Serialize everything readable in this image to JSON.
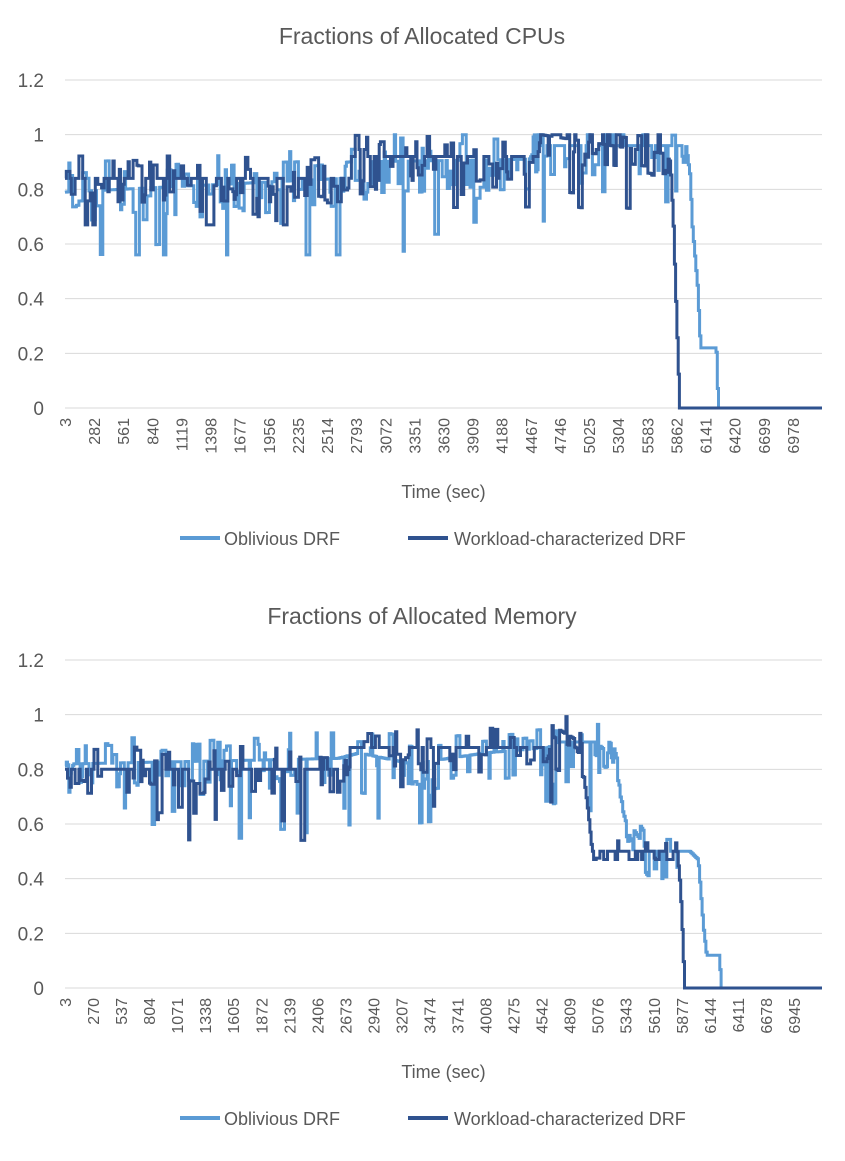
{
  "chart_data": [
    {
      "type": "line",
      "title": "Fractions of Allocated CPUs",
      "xlabel": "Time (sec)",
      "ylabel": "",
      "ylim": [
        0,
        1.2
      ],
      "yticks": [
        "0",
        "0.2",
        "0.4",
        "0.6",
        "0.8",
        "1",
        "1.2"
      ],
      "xlim": [
        3,
        7257
      ],
      "xticks": [
        "3",
        "282",
        "561",
        "840",
        "1119",
        "1398",
        "1677",
        "1956",
        "2235",
        "2514",
        "2793",
        "3072",
        "3351",
        "3630",
        "3909",
        "4188",
        "4467",
        "4746",
        "5025",
        "5304",
        "5583",
        "5862",
        "6141",
        "6420",
        "6699",
        "6978"
      ],
      "grid": "horizontal",
      "legend": "bottom",
      "series": [
        {
          "name": "Oblivious DRF",
          "color": "#5B9BD5",
          "base": [
            [
              3,
              0.79
            ],
            [
              2650,
              0.84
            ],
            [
              2700,
              0.9
            ],
            [
              4450,
              0.91
            ],
            [
              4530,
              0.96
            ],
            [
              5950,
              0.96
            ],
            [
              5990,
              0.85
            ],
            [
              6010,
              0.67
            ],
            [
              6060,
              0.45
            ],
            [
              6090,
              0.22
            ],
            [
              6240,
              0.22
            ],
            [
              6260,
              0
            ],
            [
              7257,
              0
            ]
          ],
          "amp": 0.09,
          "floor": 0.56,
          "noise_end": 5950
        },
        {
          "name": "Workload-characterized DRF",
          "color": "#2F528F",
          "base": [
            [
              3,
              0.84
            ],
            [
              2700,
              0.84
            ],
            [
              2720,
              0.92
            ],
            [
              4530,
              0.92
            ],
            [
              4560,
              1.0
            ],
            [
              5750,
              0.93
            ],
            [
              5800,
              0.9
            ],
            [
              5830,
              0.67
            ],
            [
              5850,
              0.44
            ],
            [
              5870,
              0.22
            ],
            [
              5890,
              0
            ],
            [
              7257,
              0
            ]
          ],
          "amp": 0.07,
          "floor": 0.67,
          "noise_end": 5800
        }
      ]
    },
    {
      "type": "line",
      "title": "Fractions of Allocated Memory",
      "xlabel": "Time (sec)",
      "ylabel": "",
      "ylim": [
        0,
        1.2
      ],
      "yticks": [
        "0",
        "0.2",
        "0.4",
        "0.6",
        "0.8",
        "1",
        "1.2"
      ],
      "xlim": [
        3,
        7212
      ],
      "xticks": [
        "3",
        "270",
        "537",
        "804",
        "1071",
        "1338",
        "1605",
        "1872",
        "2139",
        "2406",
        "2673",
        "2940",
        "3207",
        "3474",
        "3741",
        "4008",
        "4275",
        "4542",
        "4809",
        "5076",
        "5343",
        "5610",
        "5877",
        "6144",
        "6411",
        "6678",
        "6945"
      ],
      "grid": "horizontal",
      "legend": "bottom",
      "series": [
        {
          "name": "Oblivious DRF",
          "color": "#5B9BD5",
          "base": [
            [
              3,
              0.73
            ],
            [
              80,
              0.82
            ],
            [
              2600,
              0.84
            ],
            [
              2800,
              0.86
            ],
            [
              3300,
              0.82
            ],
            [
              4000,
              0.86
            ],
            [
              4600,
              0.88
            ],
            [
              4700,
              0.9
            ],
            [
              5050,
              0.9
            ],
            [
              5200,
              0.85
            ],
            [
              5380,
              0.6
            ],
            [
              5550,
              0.5
            ],
            [
              5950,
              0.5
            ],
            [
              6030,
              0.47
            ],
            [
              6080,
              0.22
            ],
            [
              6110,
              0.12
            ],
            [
              6230,
              0.12
            ],
            [
              6250,
              0
            ],
            [
              7212,
              0
            ]
          ],
          "amp": 0.08,
          "floor": 0.35,
          "noise_end": 5950
        },
        {
          "name": "Workload-characterized DRF",
          "color": "#2F528F",
          "base": [
            [
              3,
              0.8
            ],
            [
              2650,
              0.8
            ],
            [
              2700,
              0.88
            ],
            [
              4600,
              0.88
            ],
            [
              4640,
              0.96
            ],
            [
              4900,
              0.9
            ],
            [
              4980,
              0.65
            ],
            [
              5020,
              0.5
            ],
            [
              5830,
              0.5
            ],
            [
              5860,
              0.37
            ],
            [
              5880,
              0.2
            ],
            [
              5900,
              0
            ],
            [
              7212,
              0
            ]
          ],
          "amp": 0.07,
          "floor": 0.47,
          "noise_end": 5830
        }
      ]
    }
  ]
}
